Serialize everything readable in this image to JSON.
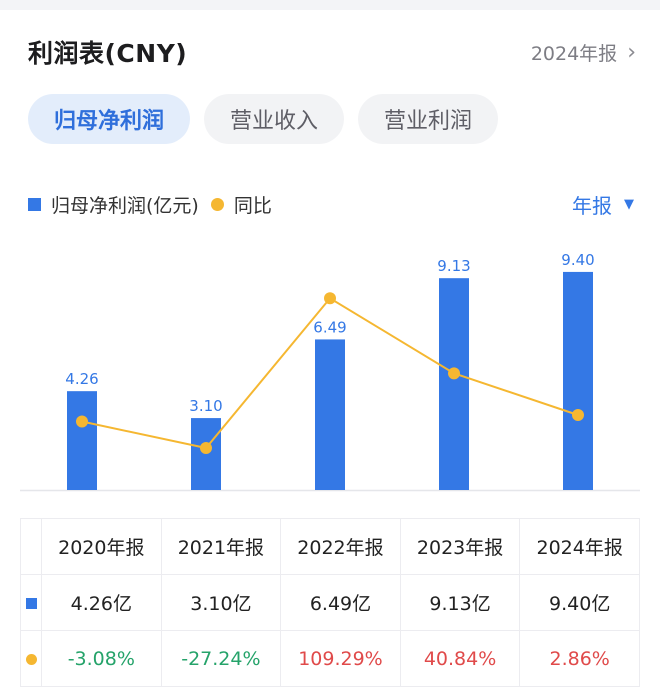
{
  "header": {
    "title": "利润表(CNY)",
    "period_link": "2024年报"
  },
  "tabs": [
    {
      "label": "归母净利润",
      "active": true
    },
    {
      "label": "营业收入",
      "active": false
    },
    {
      "label": "营业利润",
      "active": false
    }
  ],
  "legend": {
    "bar_label": "归母净利润(亿元)",
    "line_label": "同比"
  },
  "period_select": "年报",
  "colors": {
    "bar": "#3478e5",
    "line": "#f5b731",
    "positive": "#e04a4a",
    "negative": "#25a36a",
    "accent": "#2f6fdb"
  },
  "chart_data": {
    "type": "bar",
    "categories": [
      "2020年报",
      "2021年报",
      "2022年报",
      "2023年报",
      "2024年报"
    ],
    "series": [
      {
        "name": "归母净利润(亿元)",
        "type": "bar",
        "values": [
          4.26,
          3.1,
          6.49,
          9.13,
          9.4
        ],
        "labels": [
          "4.26",
          "3.10",
          "6.49",
          "9.13",
          "9.40"
        ]
      },
      {
        "name": "同比",
        "type": "line",
        "values": [
          -3.08,
          -27.24,
          109.29,
          40.84,
          2.86
        ]
      }
    ],
    "grid": false,
    "legend_position": "top-left"
  },
  "table": {
    "headers": [
      "2020年报",
      "2021年报",
      "2022年报",
      "2023年报",
      "2024年报"
    ],
    "values": [
      "4.26亿",
      "3.10亿",
      "6.49亿",
      "9.13亿",
      "9.40亿"
    ],
    "yoy": [
      "-3.08%",
      "-27.24%",
      "109.29%",
      "40.84%",
      "2.86%"
    ]
  }
}
